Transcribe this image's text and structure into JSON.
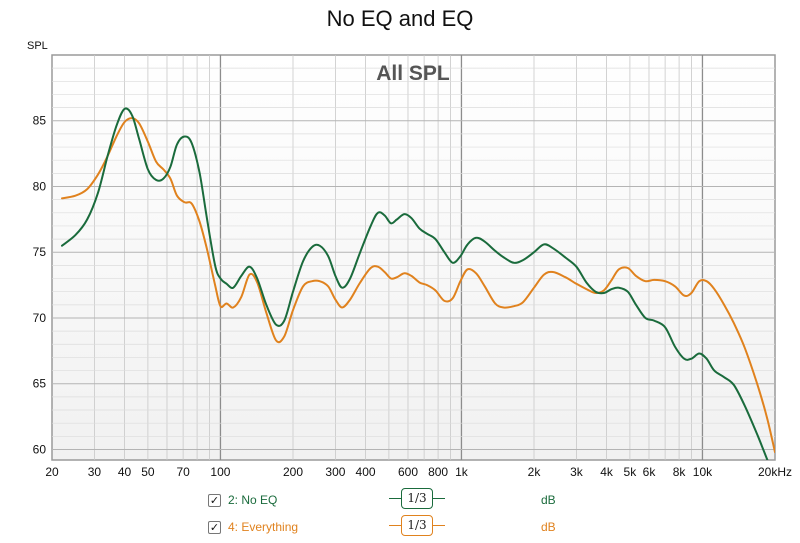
{
  "chart_data": {
    "type": "line",
    "title": "No EQ and EQ",
    "subtitle": "All SPL",
    "ylabel": "SPL",
    "x_scale": "log",
    "xlim": [
      20,
      20000
    ],
    "ylim": [
      59.2,
      90
    ],
    "x_ticks": [
      {
        "v": 20,
        "label": "20"
      },
      {
        "v": 30,
        "label": "30"
      },
      {
        "v": 40,
        "label": "40"
      },
      {
        "v": 50,
        "label": "50"
      },
      {
        "v": 70,
        "label": "70"
      },
      {
        "v": 100,
        "label": "100"
      },
      {
        "v": 200,
        "label": "200"
      },
      {
        "v": 300,
        "label": "300"
      },
      {
        "v": 400,
        "label": "400"
      },
      {
        "v": 600,
        "label": "600"
      },
      {
        "v": 800,
        "label": "800"
      },
      {
        "v": 1000,
        "label": "1k"
      },
      {
        "v": 2000,
        "label": "2k"
      },
      {
        "v": 3000,
        "label": "3k"
      },
      {
        "v": 4000,
        "label": "4k"
      },
      {
        "v": 5000,
        "label": "5k"
      },
      {
        "v": 6000,
        "label": "6k"
      },
      {
        "v": 8000,
        "label": "8k"
      },
      {
        "v": 10000,
        "label": "10k"
      },
      {
        "v": 20000,
        "label": "20kHz"
      }
    ],
    "y_ticks": [
      60,
      65,
      70,
      75,
      80,
      85
    ],
    "series": [
      {
        "name": "2: No EQ",
        "color": "#1a6b3c",
        "smoothing": "1/3",
        "unit": "dB",
        "points": [
          [
            22,
            75.5
          ],
          [
            25,
            76.3
          ],
          [
            28,
            77.5
          ],
          [
            31,
            79.5
          ],
          [
            34,
            82.3
          ],
          [
            37,
            84.6
          ],
          [
            40,
            85.9
          ],
          [
            43,
            85.4
          ],
          [
            46,
            83.6
          ],
          [
            50,
            81.3
          ],
          [
            54,
            80.5
          ],
          [
            58,
            80.6
          ],
          [
            62,
            81.5
          ],
          [
            66,
            83.2
          ],
          [
            71,
            83.8
          ],
          [
            76,
            83.3
          ],
          [
            82,
            81.0
          ],
          [
            88,
            77.5
          ],
          [
            95,
            74.0
          ],
          [
            100,
            73.0
          ],
          [
            106,
            72.6
          ],
          [
            113,
            72.3
          ],
          [
            122,
            73.2
          ],
          [
            132,
            73.9
          ],
          [
            142,
            73.0
          ],
          [
            155,
            71.0
          ],
          [
            170,
            69.5
          ],
          [
            184,
            69.8
          ],
          [
            200,
            72.0
          ],
          [
            220,
            74.3
          ],
          [
            240,
            75.4
          ],
          [
            258,
            75.5
          ],
          [
            280,
            74.7
          ],
          [
            300,
            73.2
          ],
          [
            320,
            72.3
          ],
          [
            345,
            73.0
          ],
          [
            380,
            75.0
          ],
          [
            420,
            77.0
          ],
          [
            450,
            78.0
          ],
          [
            480,
            77.8
          ],
          [
            510,
            77.2
          ],
          [
            540,
            77.5
          ],
          [
            580,
            77.9
          ],
          [
            620,
            77.6
          ],
          [
            670,
            76.8
          ],
          [
            720,
            76.4
          ],
          [
            780,
            76.0
          ],
          [
            850,
            75.0
          ],
          [
            920,
            74.2
          ],
          [
            990,
            74.7
          ],
          [
            1060,
            75.6
          ],
          [
            1150,
            76.1
          ],
          [
            1250,
            75.8
          ],
          [
            1380,
            75.1
          ],
          [
            1500,
            74.6
          ],
          [
            1650,
            74.2
          ],
          [
            1800,
            74.4
          ],
          [
            2000,
            75.0
          ],
          [
            2200,
            75.6
          ],
          [
            2400,
            75.3
          ],
          [
            2700,
            74.6
          ],
          [
            3000,
            73.9
          ],
          [
            3300,
            72.7
          ],
          [
            3600,
            72.0
          ],
          [
            3900,
            71.9
          ],
          [
            4200,
            72.2
          ],
          [
            4500,
            72.3
          ],
          [
            4900,
            72.0
          ],
          [
            5300,
            71.0
          ],
          [
            5800,
            70.0
          ],
          [
            6300,
            69.8
          ],
          [
            7000,
            69.3
          ],
          [
            7700,
            67.8
          ],
          [
            8400,
            66.9
          ],
          [
            9000,
            66.9
          ],
          [
            9700,
            67.3
          ],
          [
            10400,
            66.9
          ],
          [
            11200,
            66.0
          ],
          [
            12300,
            65.5
          ],
          [
            13500,
            64.9
          ],
          [
            15000,
            63.3
          ],
          [
            17000,
            61.0
          ],
          [
            18600,
            59.2
          ]
        ]
      },
      {
        "name": "4: Everything",
        "color": "#e0821e",
        "smoothing": "1/3",
        "unit": "dB",
        "points": [
          [
            22,
            79.1
          ],
          [
            25,
            79.3
          ],
          [
            28,
            79.8
          ],
          [
            31,
            80.9
          ],
          [
            34,
            82.3
          ],
          [
            37,
            83.8
          ],
          [
            40,
            84.9
          ],
          [
            43,
            85.2
          ],
          [
            46,
            84.8
          ],
          [
            50,
            83.4
          ],
          [
            54,
            81.9
          ],
          [
            58,
            81.3
          ],
          [
            62,
            80.6
          ],
          [
            66,
            79.3
          ],
          [
            71,
            78.8
          ],
          [
            76,
            78.7
          ],
          [
            82,
            77.3
          ],
          [
            88,
            75.2
          ],
          [
            95,
            72.5
          ],
          [
            100,
            70.9
          ],
          [
            106,
            71.1
          ],
          [
            113,
            70.8
          ],
          [
            122,
            71.6
          ],
          [
            132,
            73.3
          ],
          [
            142,
            72.7
          ],
          [
            155,
            70.4
          ],
          [
            170,
            68.3
          ],
          [
            184,
            68.6
          ],
          [
            200,
            70.6
          ],
          [
            220,
            72.4
          ],
          [
            240,
            72.8
          ],
          [
            258,
            72.8
          ],
          [
            280,
            72.4
          ],
          [
            300,
            71.4
          ],
          [
            320,
            70.8
          ],
          [
            345,
            71.4
          ],
          [
            380,
            72.7
          ],
          [
            420,
            73.8
          ],
          [
            450,
            73.9
          ],
          [
            480,
            73.5
          ],
          [
            510,
            73.0
          ],
          [
            540,
            73.1
          ],
          [
            580,
            73.4
          ],
          [
            620,
            73.2
          ],
          [
            670,
            72.7
          ],
          [
            720,
            72.5
          ],
          [
            780,
            72.1
          ],
          [
            850,
            71.3
          ],
          [
            920,
            71.5
          ],
          [
            990,
            72.8
          ],
          [
            1060,
            73.7
          ],
          [
            1150,
            73.4
          ],
          [
            1250,
            72.4
          ],
          [
            1380,
            71.1
          ],
          [
            1500,
            70.8
          ],
          [
            1650,
            70.9
          ],
          [
            1800,
            71.2
          ],
          [
            2000,
            72.3
          ],
          [
            2200,
            73.3
          ],
          [
            2400,
            73.5
          ],
          [
            2700,
            73.1
          ],
          [
            3000,
            72.6
          ],
          [
            3300,
            72.2
          ],
          [
            3600,
            71.9
          ],
          [
            3900,
            72.1
          ],
          [
            4200,
            72.9
          ],
          [
            4500,
            73.7
          ],
          [
            4900,
            73.8
          ],
          [
            5300,
            73.2
          ],
          [
            5800,
            72.8
          ],
          [
            6300,
            72.9
          ],
          [
            7000,
            72.8
          ],
          [
            7700,
            72.4
          ],
          [
            8400,
            71.7
          ],
          [
            9000,
            71.9
          ],
          [
            9700,
            72.8
          ],
          [
            10400,
            72.8
          ],
          [
            11200,
            72.2
          ],
          [
            12300,
            71.0
          ],
          [
            13500,
            69.6
          ],
          [
            15000,
            67.7
          ],
          [
            17000,
            64.8
          ],
          [
            18600,
            62.3
          ],
          [
            20000,
            59.8
          ]
        ]
      }
    ]
  }
}
